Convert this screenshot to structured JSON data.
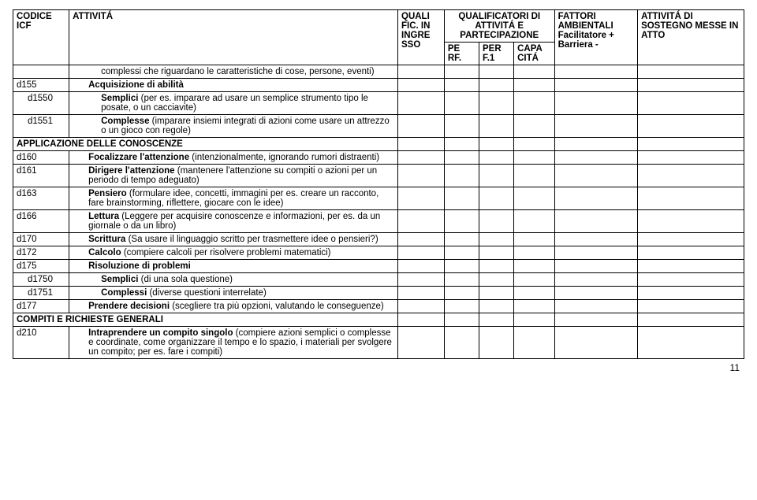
{
  "header": {
    "codice": "CODICE ICF",
    "attivita": "ATTIVITÁ",
    "qualific_ingresso": "QUALI FIC. IN INGRE SSO",
    "qualificatori_group": "QUALIFICATORI DI ATTIVITÁ E PARTECIPAZIONE",
    "perf": "PE RF.",
    "perf1": "PER F.1",
    "capacita": "CAPA CITÁ",
    "fattori": "FATTORI AMBIENTALI Facilitatore + Barriera -",
    "sostegno": "ATTIVITÁ DI SOSTEGNO MESSE IN ATTO"
  },
  "rows": [
    {
      "code": "",
      "text": "complessi che riguardano le caratteristiche di cose, persone, eventi)",
      "indent": 2
    },
    {
      "code": "d155",
      "text": "<b>Acquisizione di abilità</b>",
      "indent": 1
    },
    {
      "code": "d1550",
      "text": "<b>Semplici</b> (per es. imparare ad usare un semplice strumento tipo le posate, o un cacciavite)",
      "indent": 2,
      "codeIndent": 1
    },
    {
      "code": "d1551",
      "text": "<b>Complesse</b> (imparare insiemi integrati di azioni come usare un attrezzo o un gioco con regole)",
      "indent": 2,
      "codeIndent": 1
    },
    {
      "section": "APPLICAZIONE DELLE CONOSCENZE"
    },
    {
      "code": "d160",
      "text": "<b>Focalizzare l'attenzione</b> (intenzionalmente, ignorando rumori distraenti)",
      "indent": 1
    },
    {
      "code": "d161",
      "text": "<b>Dirigere l'attenzione</b> (mantenere l'attenzione su compiti o azioni per un periodo di tempo adeguato)",
      "indent": 1
    },
    {
      "code": "d163",
      "text": "<b>Pensiero</b> (formulare idee, concetti, immagini per es. creare un racconto, fare brainstorming, riflettere, giocare con le idee)",
      "indent": 1
    },
    {
      "code": "d166",
      "text": "<b>Lettura</b> (Leggere per acquisire conoscenze e informazioni, per es. da un giornale o da un libro)",
      "indent": 1
    },
    {
      "code": "d170",
      "text": "<b>Scrittura</b> (Sa usare il linguaggio scritto per trasmettere idee o pensieri?)",
      "indent": 1
    },
    {
      "code": "d172",
      "text": "<b>Calcolo</b> (compiere calcoli per risolvere problemi matematici)",
      "indent": 1
    },
    {
      "code": "d175",
      "text": "<b>Risoluzione di problemi</b>",
      "indent": 1
    },
    {
      "code": "d1750",
      "text": "<b>Semplici</b> (di una sola questione)",
      "indent": 2,
      "codeIndent": 1
    },
    {
      "code": "d1751",
      "text": "<b>Complessi</b> (diverse questioni interrelate)",
      "indent": 2,
      "codeIndent": 1
    },
    {
      "code": "d177",
      "text": "<b>Prendere decisioni</b> (scegliere tra più opzioni, valutando le conseguenze)",
      "indent": 1
    },
    {
      "section": "COMPITI E RICHIESTE GENERALI"
    },
    {
      "code": "d210",
      "text": "<b>Intraprendere un compito singolo</b> (compiere azioni semplici o complesse e coordinate, come organizzare il tempo e lo spazio, i materiali per svolgere un compito; per es. fare i compiti)",
      "indent": 1
    }
  ],
  "pageNumber": "11",
  "colors": {
    "border": "#000000",
    "background": "#ffffff",
    "text": "#000000"
  },
  "fontSize": 11.5
}
